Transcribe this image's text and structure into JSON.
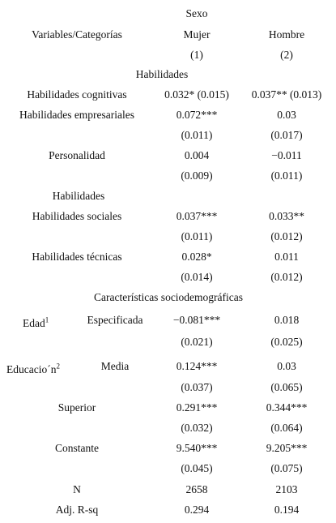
{
  "header": {
    "group": "Sexo",
    "variables": "Variables/Categorías",
    "columns": [
      "Mujer",
      "Hombre"
    ],
    "numbers": [
      "(1)",
      "(2)"
    ]
  },
  "rows": [
    {
      "section": "Habilidades"
    },
    {
      "label": "Habilidades cognitivas",
      "mujer": "0.032* (0.015)",
      "hombre": "0.037** (0.013)"
    },
    {
      "label": "Habilidades empresariales",
      "mujer": "0.072***",
      "hombre": "0.03"
    },
    {
      "mujer": "(0.011)",
      "hombre": "(0.017)"
    },
    {
      "label": "Personalidad",
      "mujer": "0.004",
      "hombre": "−0.011"
    },
    {
      "mujer": "(0.009)",
      "hombre": "(0.011)"
    },
    {
      "section": "Habilidades"
    },
    {
      "label": "Habilidades sociales",
      "mujer": "0.037***",
      "hombre": "0.033**"
    },
    {
      "mujer": "(0.011)",
      "hombre": "(0.012)"
    },
    {
      "label": "Habilidades técnicas",
      "mujer": "0.028*",
      "hombre": "0.011"
    },
    {
      "mujer": "(0.014)",
      "hombre": "(0.012)"
    },
    {
      "section": "Características sociodemográficas"
    },
    {
      "group": "Edad",
      "note": "1",
      "label": "Especificada",
      "mujer": "−0.081***",
      "hombre": "0.018"
    },
    {
      "mujer": "(0.021)",
      "hombre": "(0.025)"
    },
    {
      "group": "Educacio´n",
      "note": "2",
      "label": "Media",
      "mujer": "0.124***",
      "hombre": "0.03"
    },
    {
      "mujer": "(0.037)",
      "hombre": "(0.065)"
    },
    {
      "label": "Superior",
      "mujer": "0.291***",
      "hombre": "0.344***"
    },
    {
      "mujer": "(0.032)",
      "hombre": "(0.064)"
    },
    {
      "label": "Constante",
      "mujer": "9.540***",
      "hombre": "9.205***"
    },
    {
      "mujer": "(0.045)",
      "hombre": "(0.075)"
    },
    {
      "label": "N",
      "mujer": "2658",
      "hombre": "2103"
    },
    {
      "label": "Adj. R-sq",
      "mujer": "0.294",
      "hombre": "0.194"
    }
  ]
}
